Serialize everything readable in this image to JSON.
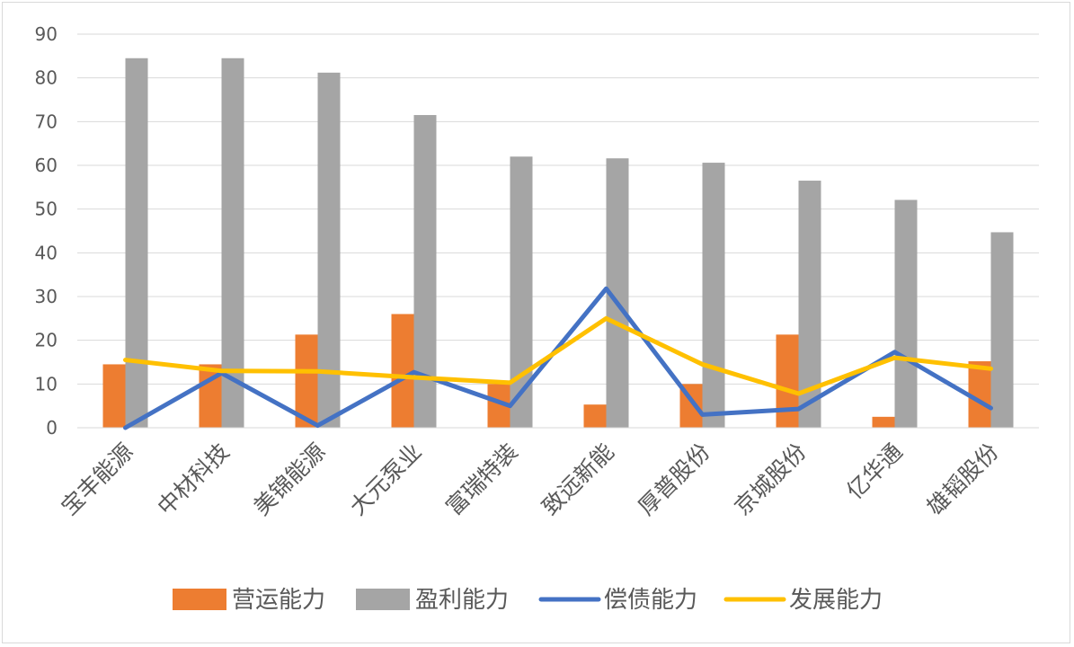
{
  "chart_data": {
    "type": "bar",
    "title": "",
    "xlabel": "",
    "ylabel": "",
    "ylim": [
      0,
      90
    ],
    "yticks": [
      0,
      10,
      20,
      30,
      40,
      50,
      60,
      70,
      80,
      90
    ],
    "grid": true,
    "legend_position": "bottom",
    "categories": [
      "宝丰能源",
      "中材科技",
      "美锦能源",
      "大元泵业",
      "富瑞特装",
      "致远新能",
      "厚普股份",
      "京城股份",
      "亿华通",
      "雄韬股份"
    ],
    "series": [
      {
        "name": "营运能力",
        "type": "bar",
        "color": "#ED7D31",
        "values": [
          14.5,
          14.5,
          21.3,
          26.0,
          10.0,
          5.3,
          10.0,
          21.3,
          2.5,
          15.2
        ]
      },
      {
        "name": "盈利能力",
        "type": "bar",
        "color": "#A5A5A5",
        "values": [
          84.5,
          84.5,
          81.2,
          71.5,
          62.0,
          61.6,
          60.6,
          56.5,
          52.1,
          44.7
        ]
      },
      {
        "name": "偿债能力",
        "type": "line",
        "color": "#4472C4",
        "values": [
          0,
          12.5,
          0.5,
          12.7,
          5.0,
          31.8,
          3.0,
          4.3,
          17.3,
          4.5
        ]
      },
      {
        "name": "发展能力",
        "type": "line",
        "color": "#FFC000",
        "values": [
          15.5,
          13.0,
          12.9,
          11.5,
          10.3,
          25.0,
          14.5,
          7.8,
          16.0,
          13.5
        ]
      }
    ]
  }
}
